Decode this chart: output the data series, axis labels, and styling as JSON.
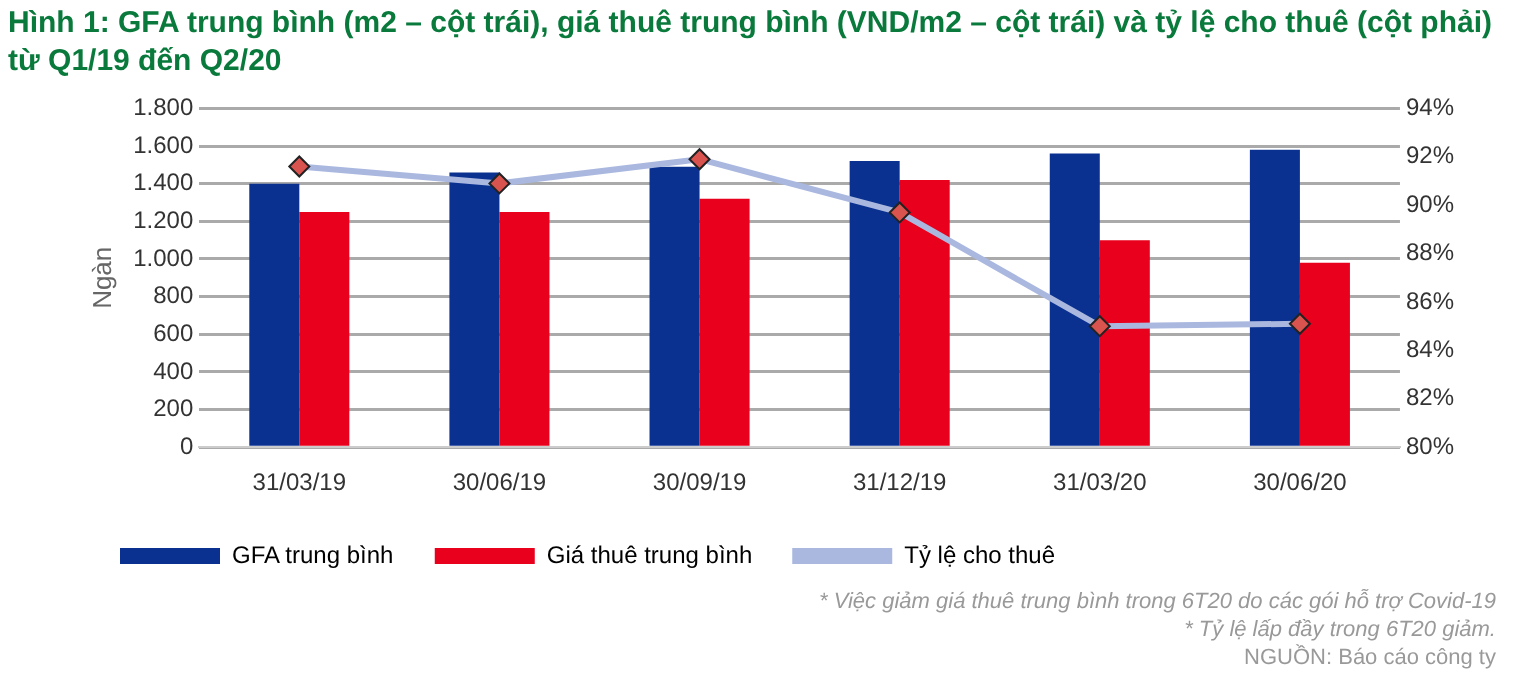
{
  "chart_data": {
    "type": "bar",
    "title": "Hình 1: GFA trung bình (m2 – cột trái), giá thuê trung bình (VND/m2 – cột trái) và tỷ lệ cho thuê (cột phải) từ Q1/19 đến Q2/20",
    "ylabel": "Ngàn",
    "categories": [
      "31/03/19",
      "30/06/19",
      "30/09/19",
      "31/12/19",
      "31/03/20",
      "30/06/20"
    ],
    "series": [
      {
        "name": "GFA trung bình",
        "color": "#0a3190",
        "values": [
          1400,
          1460,
          1490,
          1520,
          1560,
          1580
        ]
      },
      {
        "name": "Giá thuê trung bình",
        "color": "#e8001c",
        "values": [
          1250,
          1250,
          1320,
          1420,
          1100,
          980
        ]
      },
      {
        "name": "Tỷ lệ cho thuê",
        "type": "line",
        "axis": "y2",
        "color": "#aab8e0",
        "marker": "diamond",
        "values": [
          91.6,
          90.9,
          91.9,
          89.7,
          85.0,
          85.1
        ]
      }
    ],
    "ylim": [
      0,
      1800
    ],
    "yticks": [
      {
        "value": 0,
        "label": "0"
      },
      {
        "value": 200,
        "label": "200"
      },
      {
        "value": 400,
        "label": "400"
      },
      {
        "value": 600,
        "label": "600"
      },
      {
        "value": 800,
        "label": "800"
      },
      {
        "value": 1000,
        "label": "1.000"
      },
      {
        "value": 1200,
        "label": "1.200"
      },
      {
        "value": 1400,
        "label": "1.400"
      },
      {
        "value": 1600,
        "label": "1.600"
      },
      {
        "value": 1800,
        "label": "1.800"
      }
    ],
    "y2lim": [
      80,
      94
    ],
    "y2ticks": [
      {
        "value": 80,
        "label": "80%"
      },
      {
        "value": 82,
        "label": "82%"
      },
      {
        "value": 84,
        "label": "84%"
      },
      {
        "value": 86,
        "label": "86%"
      },
      {
        "value": 88,
        "label": "88%"
      },
      {
        "value": 90,
        "label": "90%"
      },
      {
        "value": 92,
        "label": "92%"
      },
      {
        "value": 94,
        "label": "94%"
      }
    ],
    "grid": "y",
    "legend": "bottom",
    "annotations": [
      "* Việc giảm giá thuê trung bình trong 6T20 do các gói hỗ trợ Covid-19",
      "* Tỷ lệ lấp đầy trong 6T20 giảm.",
      "NGUỒN: Báo cáo công ty"
    ]
  }
}
